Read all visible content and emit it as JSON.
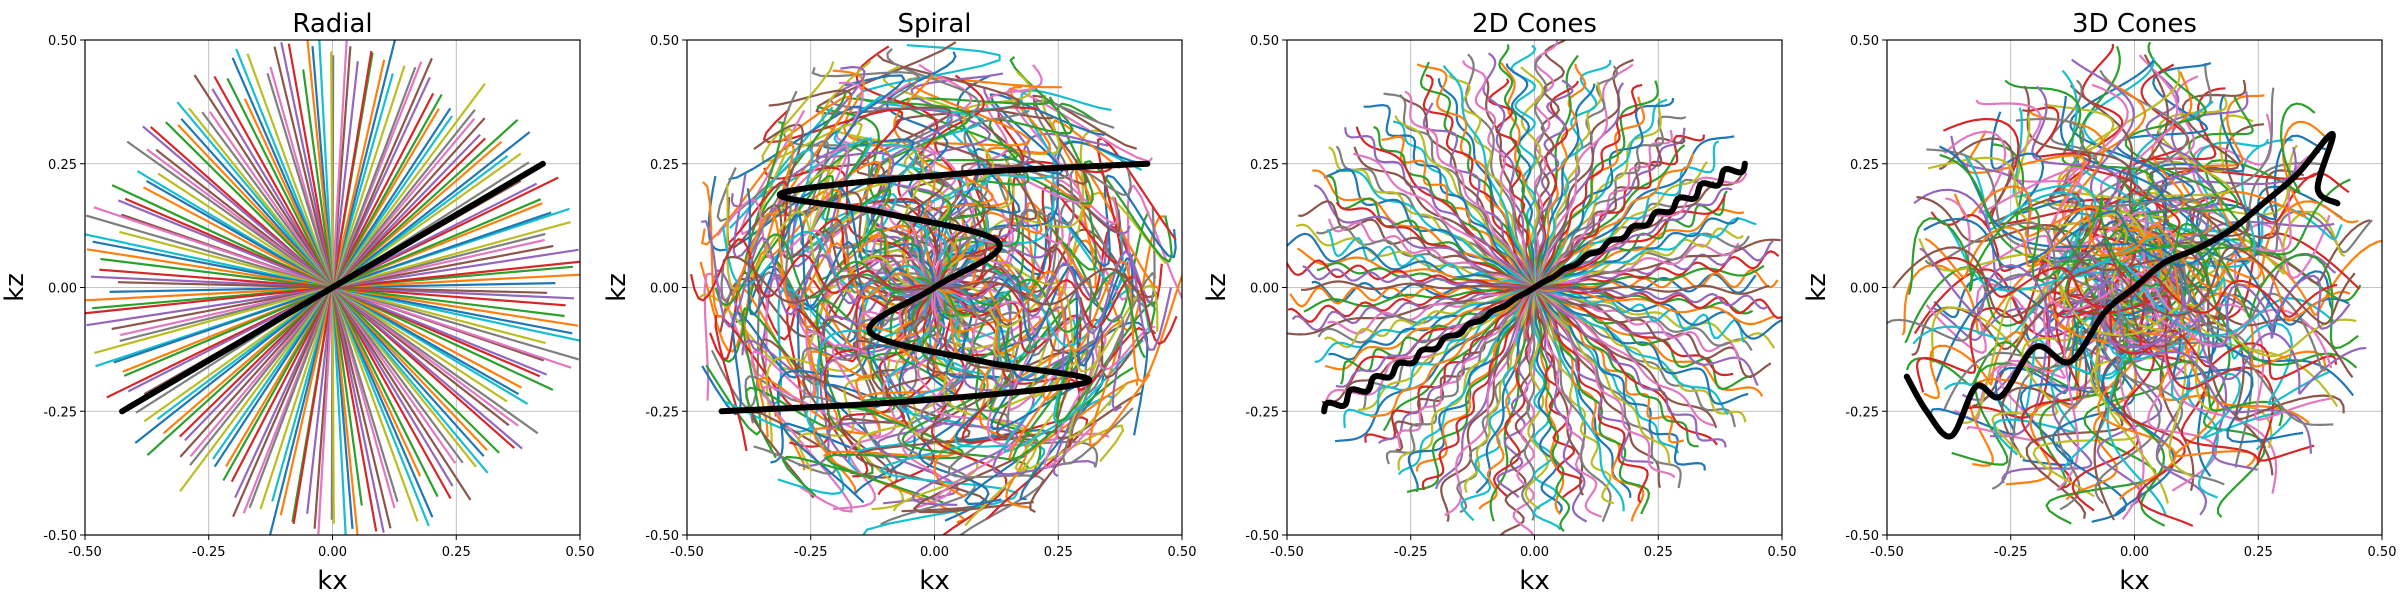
{
  "chart_data": [
    {
      "type": "line",
      "title": "Radial",
      "xlabel": "kx",
      "ylabel": "kz",
      "xlim": [
        -0.5,
        0.5
      ],
      "ylim": [
        -0.5,
        0.5
      ],
      "xticks": [
        "-0.50",
        "-0.25",
        "0.00",
        "0.25",
        "0.50"
      ],
      "yticks": [
        "-0.50",
        "-0.25",
        "0.00",
        "0.25",
        "0.50"
      ],
      "grid": true,
      "trajectory": "radial",
      "spoke_count": 96,
      "highlighted_series": {
        "color": "#000000",
        "x": [
          -0.425,
          0.0,
          0.425
        ],
        "y": [
          -0.25,
          0.0,
          0.25
        ]
      }
    },
    {
      "type": "line",
      "title": "Spiral",
      "xlabel": "kx",
      "ylabel": "kz",
      "xlim": [
        -0.5,
        0.5
      ],
      "ylim": [
        -0.5,
        0.5
      ],
      "xticks": [
        "-0.50",
        "-0.25",
        "0.00",
        "0.25",
        "0.50"
      ],
      "yticks": [
        "-0.50",
        "-0.25",
        "0.00",
        "0.25",
        "0.50"
      ],
      "grid": true,
      "trajectory": "spiral",
      "spoke_count": 96,
      "highlighted_series": {
        "color": "#000000",
        "x": [
          -0.43,
          -0.05,
          0.31,
          0.1,
          -0.13,
          0.0,
          0.13,
          -0.1,
          -0.31,
          0.05,
          0.43
        ],
        "y": [
          -0.25,
          -0.23,
          -0.19,
          -0.15,
          -0.09,
          0.0,
          0.09,
          0.15,
          0.19,
          0.23,
          0.25
        ]
      }
    },
    {
      "type": "line",
      "title": "2D Cones",
      "xlabel": "kx",
      "ylabel": "kz",
      "xlim": [
        -0.5,
        0.5
      ],
      "ylim": [
        -0.5,
        0.5
      ],
      "xticks": [
        "-0.50",
        "-0.25",
        "0.00",
        "0.25",
        "0.50"
      ],
      "yticks": [
        "-0.50",
        "-0.25",
        "0.00",
        "0.25",
        "0.50"
      ],
      "grid": true,
      "trajectory": "2d-cones",
      "spoke_count": 96,
      "highlighted_series": {
        "color": "#000000",
        "x": [
          -0.425,
          0.0,
          0.425
        ],
        "y": [
          -0.25,
          0.0,
          0.25
        ]
      }
    },
    {
      "type": "line",
      "title": "3D Cones",
      "xlabel": "kx",
      "ylabel": "kz",
      "xlim": [
        -0.5,
        0.5
      ],
      "ylim": [
        -0.5,
        0.5
      ],
      "xticks": [
        "-0.50",
        "-0.25",
        "0.00",
        "0.25",
        "0.50"
      ],
      "yticks": [
        "-0.50",
        "-0.25",
        "0.00",
        "0.25",
        "0.50"
      ],
      "grid": true,
      "trajectory": "3d-cones",
      "spoke_count": 96,
      "highlighted_series": {
        "color": "#000000",
        "x": [
          -0.46,
          -0.42,
          -0.37,
          -0.32,
          -0.27,
          -0.2,
          -0.13,
          -0.06,
          0.0,
          0.06,
          0.13,
          0.2,
          0.26,
          0.33,
          0.4,
          0.37,
          0.41
        ],
        "y": [
          -0.18,
          -0.25,
          -0.3,
          -0.2,
          -0.22,
          -0.12,
          -0.15,
          -0.05,
          0.0,
          0.05,
          0.08,
          0.12,
          0.17,
          0.23,
          0.31,
          0.2,
          0.17
        ]
      }
    }
  ],
  "series_palette": [
    "#1f77b4",
    "#ff7f0e",
    "#2ca02c",
    "#d62728",
    "#9467bd",
    "#8c564b",
    "#e377c2",
    "#7f7f7f",
    "#bcbd22",
    "#17becf"
  ]
}
